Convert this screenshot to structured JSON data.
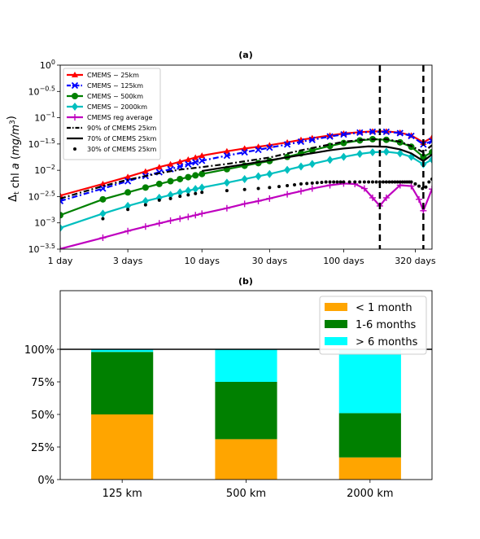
{
  "chart_data": [
    {
      "type": "line",
      "title": "(a)",
      "ylabel": "Δ_t chl a (mg/m^3)",
      "ylabel_parts": [
        "Δ",
        "t",
        " chl ",
        "a",
        " (",
        "mg/m",
        "3",
        ")"
      ],
      "xscale": "log",
      "yscale": "log",
      "xlim": [
        1,
        420
      ],
      "ylim_log10": [
        -3.5,
        0
      ],
      "x_ticks": [
        1,
        3,
        10,
        30,
        100,
        320
      ],
      "x_tick_labels": [
        "1 day",
        "3 days",
        "10 days",
        "30 days",
        "100 days",
        "320 days"
      ],
      "y_ticks_log10": [
        0,
        -0.5,
        -1,
        -1.5,
        -2,
        -2.5,
        -3,
        -3.5
      ],
      "y_tick_labels": [
        {
          "base": "10",
          "exp": "0"
        },
        {
          "base": "10",
          "exp": "−0.5"
        },
        {
          "base": "10",
          "exp": "−1"
        },
        {
          "base": "10",
          "exp": "−1.5"
        },
        {
          "base": "10",
          "exp": "−2"
        },
        {
          "base": "10",
          "exp": "−2.5"
        },
        {
          "base": "10",
          "exp": "−3"
        },
        {
          "base": "10",
          "exp": "−3.5"
        }
      ],
      "vlines": [
        180,
        365
      ],
      "legend_position": "upper-left",
      "series": [
        {
          "name": "CMEMS ~ 25km",
          "color": "#ff0000",
          "marker": "triangle",
          "style": "solid",
          "x": [
            1,
            2,
            3,
            4,
            5,
            6,
            7,
            8,
            9,
            10,
            15,
            20,
            25,
            30,
            40,
            50,
            60,
            80,
            100,
            130,
            160,
            200,
            250,
            300,
            365,
            420
          ],
          "y": [
            0.0033,
            0.0055,
            0.0075,
            0.0095,
            0.0115,
            0.013,
            0.0145,
            0.016,
            0.0175,
            0.019,
            0.023,
            0.026,
            0.028,
            0.03,
            0.034,
            0.038,
            0.041,
            0.046,
            0.05,
            0.053,
            0.055,
            0.055,
            0.052,
            0.046,
            0.034,
            0.042
          ]
        },
        {
          "name": "CMEMS ~ 125km",
          "color": "#0000ff",
          "marker": "x",
          "style": "dashdot",
          "x": [
            1,
            2,
            3,
            4,
            5,
            6,
            7,
            8,
            9,
            10,
            15,
            20,
            25,
            30,
            40,
            50,
            60,
            80,
            100,
            130,
            160,
            200,
            250,
            300,
            365,
            420
          ],
          "y": [
            0.0026,
            0.0045,
            0.0062,
            0.0078,
            0.0092,
            0.0105,
            0.0118,
            0.013,
            0.0142,
            0.0152,
            0.019,
            0.022,
            0.0245,
            0.027,
            0.031,
            0.035,
            0.038,
            0.044,
            0.048,
            0.052,
            0.054,
            0.054,
            0.051,
            0.045,
            0.031,
            0.036
          ]
        },
        {
          "name": "CMEMS ~ 500km",
          "color": "#008000",
          "marker": "circle",
          "style": "solid",
          "x": [
            1,
            2,
            3,
            4,
            5,
            6,
            7,
            8,
            9,
            10,
            15,
            20,
            25,
            30,
            40,
            50,
            60,
            80,
            100,
            130,
            160,
            200,
            250,
            300,
            365,
            420
          ],
          "y": [
            0.0014,
            0.0028,
            0.0038,
            0.0047,
            0.0055,
            0.0062,
            0.0068,
            0.0074,
            0.008,
            0.0085,
            0.0105,
            0.0122,
            0.0137,
            0.015,
            0.018,
            0.021,
            0.024,
            0.029,
            0.033,
            0.037,
            0.039,
            0.038,
            0.034,
            0.028,
            0.018,
            0.022
          ]
        },
        {
          "name": "CMEMS ~ 2000km",
          "color": "#00bfbf",
          "marker": "diamond",
          "style": "solid",
          "x": [
            1,
            2,
            3,
            4,
            5,
            6,
            7,
            8,
            9,
            10,
            15,
            20,
            25,
            30,
            40,
            50,
            60,
            80,
            100,
            130,
            160,
            200,
            250,
            300,
            365,
            420
          ],
          "y": [
            0.0008,
            0.0015,
            0.0021,
            0.0026,
            0.003,
            0.0034,
            0.0038,
            0.0041,
            0.0044,
            0.0047,
            0.0058,
            0.0068,
            0.0077,
            0.0085,
            0.0102,
            0.0118,
            0.0132,
            0.0158,
            0.018,
            0.0205,
            0.022,
            0.0225,
            0.021,
            0.018,
            0.013,
            0.016
          ]
        },
        {
          "name": "CMEMS reg average",
          "color": "#bf00bf",
          "marker": "plus",
          "style": "solid",
          "x": [
            1,
            2,
            3,
            4,
            5,
            6,
            7,
            8,
            9,
            10,
            15,
            20,
            25,
            30,
            40,
            50,
            60,
            80,
            100,
            120,
            140,
            160,
            180,
            200,
            250,
            300,
            340,
            365,
            420
          ],
          "y": [
            0.00032,
            0.00052,
            0.0007,
            0.00085,
            0.00098,
            0.0011,
            0.0012,
            0.0013,
            0.0014,
            0.0015,
            0.0019,
            0.0023,
            0.0026,
            0.0029,
            0.0035,
            0.004,
            0.0045,
            0.0052,
            0.0056,
            0.0055,
            0.0045,
            0.003,
            0.0021,
            0.003,
            0.0052,
            0.005,
            0.0028,
            0.0017,
            0.0044
          ]
        },
        {
          "name": "90% of CMEMS 25km",
          "color": "#000000",
          "marker": "none",
          "style": "dashdot",
          "x": [
            1,
            2,
            3,
            5,
            7,
            10,
            15,
            20,
            30,
            50,
            80,
            100,
            150,
            200,
            250,
            300,
            365,
            420
          ],
          "y": [
            0.0029,
            0.005,
            0.0066,
            0.0088,
            0.0103,
            0.0115,
            0.0132,
            0.0148,
            0.0175,
            0.024,
            0.031,
            0.035,
            0.039,
            0.039,
            0.035,
            0.029,
            0.022,
            0.03
          ]
        },
        {
          "name": "70% of CMEMS 25km",
          "color": "#000000",
          "marker": "none",
          "style": "solid",
          "x": [
            10,
            15,
            20,
            30,
            50,
            80,
            100,
            150,
            200,
            250,
            300,
            365,
            420
          ],
          "y": [
            0.0097,
            0.0115,
            0.013,
            0.0155,
            0.0195,
            0.024,
            0.026,
            0.0285,
            0.028,
            0.025,
            0.021,
            0.015,
            0.02
          ]
        },
        {
          "name": "30% of CMEMS 25km",
          "color": "#000000",
          "marker": "dot",
          "style": "none",
          "x": [
            2,
            3,
            4,
            5,
            6,
            7,
            8,
            9,
            10,
            15,
            20,
            25,
            30,
            35,
            40,
            45,
            50,
            55,
            60,
            65,
            70,
            75,
            80,
            85,
            90,
            95,
            100,
            110,
            120,
            130,
            140,
            150,
            160,
            170,
            180,
            190,
            200,
            210,
            220,
            230,
            240,
            250,
            260,
            270,
            280,
            290,
            300,
            320,
            340,
            360,
            380,
            400,
            420
          ],
          "y": [
            0.0012,
            0.0018,
            0.0022,
            0.0027,
            0.0029,
            0.0032,
            0.0034,
            0.0036,
            0.0038,
            0.0041,
            0.0043,
            0.0045,
            0.0047,
            0.0049,
            0.0051,
            0.0053,
            0.0055,
            0.0056,
            0.0057,
            0.0058,
            0.0059,
            0.006,
            0.006,
            0.006,
            0.006,
            0.006,
            0.006,
            0.006,
            0.006,
            0.006,
            0.006,
            0.006,
            0.006,
            0.006,
            0.006,
            0.006,
            0.006,
            0.006,
            0.006,
            0.006,
            0.006,
            0.006,
            0.006,
            0.006,
            0.006,
            0.006,
            0.006,
            0.0055,
            0.005,
            0.0045,
            0.0048,
            0.006,
            0.0068
          ]
        }
      ]
    },
    {
      "type": "bar",
      "stacked": true,
      "title": "(b)",
      "categories": [
        "125 km",
        "500 km",
        "2000 km"
      ],
      "y_ticks": [
        0,
        25,
        50,
        75,
        100
      ],
      "y_tick_labels": [
        "0%",
        "25%",
        "50%",
        "75%",
        "100%"
      ],
      "ylim": [
        0,
        145
      ],
      "hline": 100,
      "legend_position": "upper-right",
      "series": [
        {
          "name": "< 1 month",
          "color": "#ffa500",
          "values": [
            50,
            31,
            17
          ]
        },
        {
          "name": "1-6 months",
          "color": "#008000",
          "values": [
            48,
            44,
            34
          ]
        },
        {
          "name": "> 6 months",
          "color": "#00ffff",
          "values": [
            2,
            25,
            49
          ]
        }
      ]
    }
  ]
}
